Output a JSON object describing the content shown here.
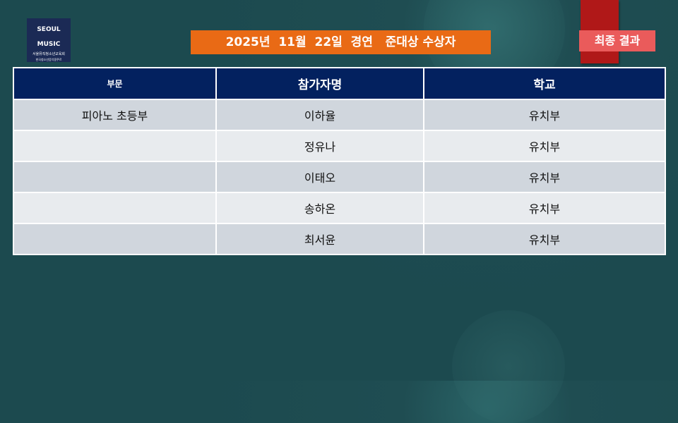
{
  "logo": {
    "line1": "SEOUL",
    "line2": "MUSIC",
    "org1": "서울뮤직청소년교육회",
    "org2": "한국청소년음악콩쿠르"
  },
  "title": "2025년  11월  22일  경연   준대상 수상자",
  "badge": "최종 결과",
  "table": {
    "headers": [
      "부문",
      "참가자명",
      "학교"
    ],
    "rows": [
      [
        "피아노 초등부",
        "이하율",
        "유치부"
      ],
      [
        "",
        "정유나",
        "유치부"
      ],
      [
        "",
        "이태오",
        "유치부"
      ],
      [
        "",
        "송하온",
        "유치부"
      ],
      [
        "",
        "최서윤",
        "유치부"
      ]
    ]
  }
}
